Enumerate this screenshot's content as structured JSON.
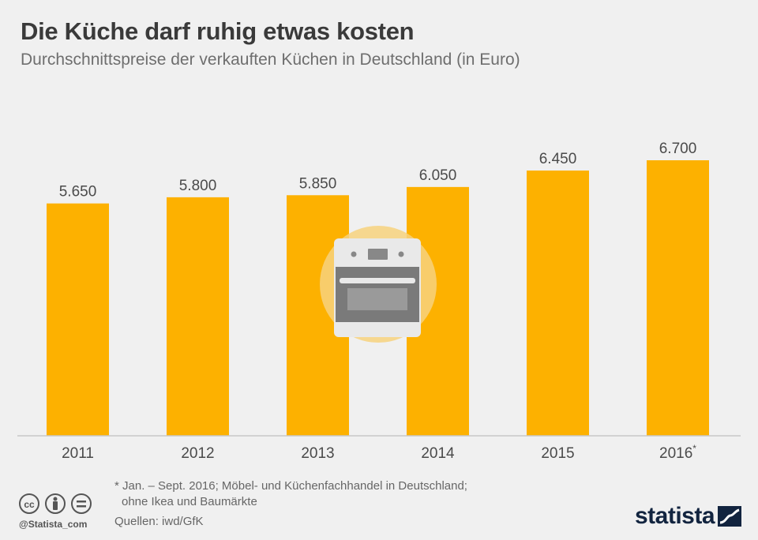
{
  "header": {
    "title": "Die Küche darf ruhig etwas kosten",
    "subtitle": "Durchschnittspreise der verkauften Küchen in Deutschland (in Euro)"
  },
  "chart_data": {
    "type": "bar",
    "title": "Die Küche darf ruhig etwas kosten",
    "subtitle": "Durchschnittspreise der verkauften Küchen in Deutschland (in Euro)",
    "categories": [
      "2011",
      "2012",
      "2013",
      "2014",
      "2015",
      "2016"
    ],
    "category_marks": [
      "",
      "",
      "",
      "",
      "",
      "*"
    ],
    "values": [
      5650,
      5800,
      5850,
      6050,
      6450,
      6700
    ],
    "value_labels": [
      "5.650",
      "5.800",
      "5.850",
      "6.050",
      "6.450",
      "6.700"
    ],
    "xlabel": "",
    "ylabel": "Euro",
    "ylim": [
      0,
      6700
    ],
    "grid": false,
    "bar_color": "#fdb100"
  },
  "footer": {
    "note_line1": "* Jan. – Sept. 2016; Möbel- und Küchenfachhandel in Deutschland;",
    "note_line2": "ohne Ikea und Baumärkte",
    "sources": "Quellen: iwd/GfK",
    "handle": "@Statista_com",
    "brand": "statista"
  },
  "icons": [
    "oven-icon",
    "creative-commons-icon",
    "attribution-icon",
    "no-derivatives-icon",
    "statista-logo-icon"
  ],
  "colors": {
    "background": "#f0f0f0",
    "bar": "#fdb100",
    "text_dark": "#3a3a3a",
    "text_muted": "#6e6e6e",
    "brand": "#12243f"
  }
}
